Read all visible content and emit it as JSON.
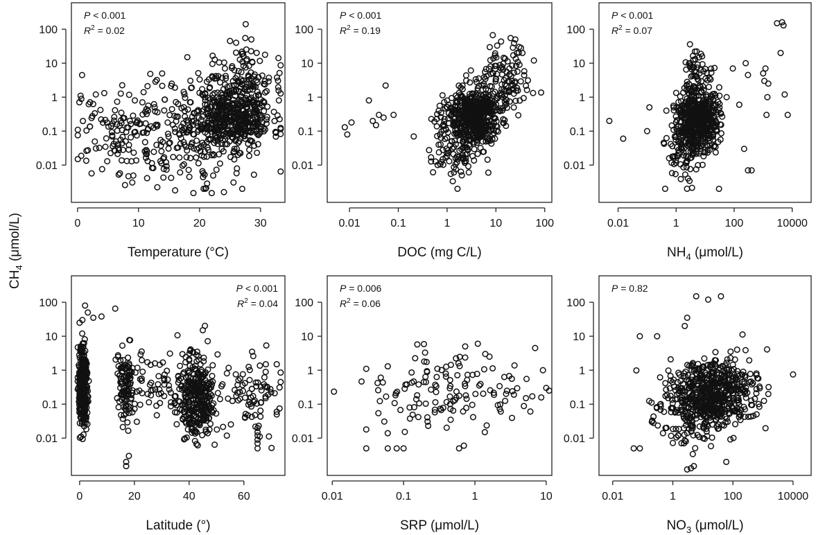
{
  "figure": {
    "ylabel": "CH",
    "ylabel_sub": "4",
    "ylabel_unit": " (μmol/L)"
  },
  "chart_data": [
    {
      "type": "scatter",
      "xlabel_main": "Temperature (°C)",
      "xlabel_sub": "",
      "xlabel_tail": "",
      "xscale": "linear",
      "xlim": [
        -1,
        34
      ],
      "xticks": [
        0,
        10,
        20,
        30
      ],
      "xtick_labels": [
        "0",
        "10",
        "20",
        "30"
      ],
      "yscale": "log",
      "ylim": [
        0.0008,
        600
      ],
      "yticks": [
        0.01,
        0.1,
        1,
        10,
        100
      ],
      "ytick_labels": [
        "0.01",
        "0.1",
        "1",
        "10",
        "100"
      ],
      "stats": [
        {
          "sym": "P",
          "text": " < 0.001",
          "sup": ""
        },
        {
          "sym": "R",
          "sup": "2",
          "text": " = 0.02"
        }
      ],
      "stats_align": "left",
      "gen": {
        "seed": 11,
        "clusters": [
          {
            "n": 420,
            "x": [
              25.5,
              3.2
            ],
            "y": [
              -0.6,
              0.45
            ]
          },
          {
            "n": 120,
            "x": [
              27,
              2.5
            ],
            "y": [
              0.6,
              0.5
            ]
          },
          {
            "n": 230,
            "x": [
              17,
              5.5
            ],
            "y": [
              -1.0,
              0.75
            ]
          },
          {
            "n": 90,
            "x": [
              7,
              4.5
            ],
            "y": [
              -1.1,
              0.7
            ]
          }
        ]
      },
      "points_extra": [
        [
          25,
          45
        ],
        [
          26,
          40
        ],
        [
          27.5,
          55
        ],
        [
          28.5,
          50
        ],
        [
          18,
          15
        ],
        [
          3,
          1.2
        ],
        [
          0.5,
          1.1
        ],
        [
          31,
          1.5
        ],
        [
          33,
          0.8
        ],
        [
          13,
          3.2
        ],
        [
          22,
          0.0015
        ],
        [
          24,
          0.0016
        ],
        [
          27,
          0.002
        ],
        [
          16,
          0.0018
        ],
        [
          19,
          0.0015
        ]
      ]
    },
    {
      "type": "scatter",
      "xlabel_main": "DOC (mg C/L)",
      "xlabel_sub": "",
      "xlabel_tail": "",
      "xscale": "log",
      "xlim": [
        0.0035,
        140
      ],
      "xticks": [
        0.01,
        0.1,
        1,
        10,
        100
      ],
      "xtick_labels": [
        "0.01",
        "0.1",
        "1",
        "10",
        "100"
      ],
      "yscale": "log",
      "ylim": [
        0.0008,
        600
      ],
      "yticks": [
        0.01,
        0.1,
        1,
        10,
        100
      ],
      "ytick_labels": [
        "0.01",
        "0.1",
        "1",
        "10",
        "100"
      ],
      "stats": [
        {
          "sym": "P",
          "text": " < 0.001",
          "sup": ""
        },
        {
          "sym": "R",
          "sup": "2",
          "text": " = 0.19"
        }
      ],
      "stats_align": "left",
      "gen": {
        "seed": 23,
        "clusters": [
          {
            "n": 560,
            "x": [
              0.5,
              0.28
            ],
            "y": [
              -0.6,
              0.45
            ]
          },
          {
            "n": 110,
            "x": [
              1.2,
              0.25
            ],
            "y": [
              0.5,
              0.5
            ]
          },
          {
            "n": 60,
            "x": [
              0.1,
              0.25
            ],
            "y": [
              -1.7,
              0.35
            ]
          }
        ]
      },
      "points_extra": [
        [
          0.008,
          0.13
        ],
        [
          0.009,
          0.08
        ],
        [
          0.011,
          0.18
        ],
        [
          0.025,
          0.8
        ],
        [
          0.03,
          0.2
        ],
        [
          0.035,
          0.15
        ],
        [
          0.04,
          0.3
        ],
        [
          0.05,
          0.25
        ],
        [
          0.055,
          2.2
        ],
        [
          0.08,
          0.3
        ],
        [
          20,
          55
        ],
        [
          25,
          50
        ],
        [
          30,
          30
        ],
        [
          35,
          20
        ],
        [
          60,
          12
        ],
        [
          7,
          0.006
        ],
        [
          2,
          0.005
        ]
      ]
    },
    {
      "type": "scatter",
      "xlabel_main": "NH",
      "xlabel_sub": "4",
      "xlabel_tail": " (μmol/L)",
      "xscale": "log",
      "xlim": [
        0.0022,
        45000
      ],
      "xticks": [
        0.01,
        1,
        100,
        10000
      ],
      "xtick_labels": [
        "0.01",
        "1",
        "100",
        "10000"
      ],
      "yscale": "log",
      "ylim": [
        0.0008,
        600
      ],
      "yticks": [
        0.01,
        0.1,
        1,
        10,
        100
      ],
      "ytick_labels": [
        "0.01",
        "0.1",
        "1",
        "10",
        "100"
      ],
      "stats": [
        {
          "sym": "P",
          "text": " < 0.001",
          "sup": ""
        },
        {
          "sym": "R",
          "sup": "2",
          "text": " = 0.07"
        }
      ],
      "stats_align": "left",
      "gen": {
        "seed": 37,
        "clusters": [
          {
            "n": 520,
            "x": [
              0.75,
              0.35
            ],
            "y": [
              -0.6,
              0.5
            ]
          },
          {
            "n": 80,
            "x": [
              0.3,
              0.35
            ],
            "y": [
              -1.6,
              0.45
            ]
          },
          {
            "n": 40,
            "x": [
              0.7,
              0.3
            ],
            "y": [
              0.8,
              0.3
            ]
          }
        ]
      },
      "points_extra": [
        [
          0.005,
          0.2
        ],
        [
          0.015,
          0.06
        ],
        [
          0.12,
          0.5
        ],
        [
          0.1,
          0.1
        ],
        [
          300,
          4.5
        ],
        [
          1000,
          5
        ],
        [
          1200,
          7
        ],
        [
          1100,
          3
        ],
        [
          1500,
          2.5
        ],
        [
          1400,
          1
        ],
        [
          1300,
          0.3
        ],
        [
          3000,
          150
        ],
        [
          4500,
          160
        ],
        [
          5000,
          130
        ],
        [
          4000,
          20
        ],
        [
          5500,
          1.2
        ],
        [
          7000,
          0.3
        ],
        [
          220,
          0.03
        ],
        [
          300,
          0.007
        ],
        [
          400,
          0.007
        ],
        [
          250,
          10
        ],
        [
          90,
          7
        ],
        [
          150,
          0.6
        ],
        [
          55,
          1
        ],
        [
          30,
          0.002
        ],
        [
          3,
          36
        ]
      ]
    },
    {
      "type": "scatter",
      "xlabel_main": "Latitude (°)",
      "xlabel_sub": "",
      "xlabel_tail": "",
      "xscale": "linear",
      "xlim": [
        -3,
        75
      ],
      "xticks": [
        0,
        20,
        40,
        60
      ],
      "xtick_labels": [
        "0",
        "20",
        "40",
        "60"
      ],
      "yscale": "log",
      "ylim": [
        0.0008,
        600
      ],
      "yticks": [
        0.01,
        0.1,
        1,
        10,
        100
      ],
      "ytick_labels": [
        "0.01",
        "0.1",
        "1",
        "10",
        "100"
      ],
      "stats": [
        {
          "sym": "P",
          "text": " < 0.001",
          "sup": ""
        },
        {
          "sym": "R",
          "sup": "2",
          "text": " = 0.04"
        }
      ],
      "stats_align": "right",
      "gen": {
        "seed": 51,
        "clusters": [
          {
            "n": 330,
            "x": [
              1.2,
              0.8
            ],
            "y": [
              -0.5,
              0.6
            ]
          },
          {
            "n": 110,
            "x": [
              17,
              1.5
            ],
            "y": [
              -0.5,
              0.55
            ]
          },
          {
            "n": 300,
            "x": [
              43,
              3.5
            ],
            "y": [
              -0.8,
              0.6
            ]
          },
          {
            "n": 90,
            "x": [
              30,
              9
            ],
            "y": [
              -0.4,
              0.55
            ]
          },
          {
            "n": 80,
            "x": [
              62,
              6
            ],
            "y": [
              -0.6,
              0.6
            ]
          }
        ]
      },
      "points_extra": [
        [
          2,
          80
        ],
        [
          3,
          50
        ],
        [
          5,
          35
        ],
        [
          8,
          38
        ],
        [
          13,
          65
        ],
        [
          1,
          30
        ],
        [
          0,
          25
        ],
        [
          17,
          0.0015
        ],
        [
          17,
          0.002
        ],
        [
          18,
          0.003
        ],
        [
          65,
          0.005
        ],
        [
          65,
          0.007
        ],
        [
          65,
          0.009
        ],
        [
          65,
          0.012
        ],
        [
          65,
          0.015
        ],
        [
          65,
          0.02
        ],
        [
          72,
          0.05
        ],
        [
          72,
          0.06
        ],
        [
          72,
          1.5
        ],
        [
          68,
          1.5
        ],
        [
          63,
          3.5
        ],
        [
          45,
          15
        ]
      ]
    },
    {
      "type": "scatter",
      "xlabel_main": "SRP (μmol/L)",
      "xlabel_sub": "",
      "xlabel_tail": "",
      "xscale": "log",
      "xlim": [
        0.0085,
        12
      ],
      "xticks": [
        0.01,
        0.1,
        1,
        10
      ],
      "xtick_labels": [
        "0.01",
        "0.1",
        "1",
        "10"
      ],
      "yscale": "log",
      "ylim": [
        0.0008,
        600
      ],
      "yticks": [
        0.01,
        0.1,
        1,
        10,
        100
      ],
      "ytick_labels": [
        "0.01",
        "0.1",
        "1",
        "10",
        "100"
      ],
      "stats": [
        {
          "sym": "P",
          "text": "  = 0.006",
          "sup": ""
        },
        {
          "sym": "R",
          "sup": "2",
          "text": " = 0.06"
        }
      ],
      "stats_align": "left",
      "gen": {
        "seed": 67,
        "clusters": [
          {
            "n": 130,
            "x": [
              -0.4,
              0.55
            ],
            "y": [
              -0.7,
              0.55
            ]
          }
        ]
      },
      "points_extra": [
        [
          0.03,
          0.005
        ],
        [
          0.03,
          0.018
        ],
        [
          0.03,
          1.1
        ],
        [
          0.06,
          0.005
        ],
        [
          0.06,
          0.014
        ],
        [
          0.06,
          1.3
        ],
        [
          0.08,
          0.005
        ],
        [
          0.1,
          0.005
        ],
        [
          1.1,
          6
        ],
        [
          1.4,
          3
        ],
        [
          1.6,
          2.5
        ],
        [
          7,
          4.5
        ],
        [
          9,
          1
        ],
        [
          10,
          0.3
        ],
        [
          11,
          0.25
        ],
        [
          0.7,
          0.006
        ],
        [
          0.6,
          0.005
        ]
      ]
    },
    {
      "type": "scatter",
      "xlabel_main": "NO",
      "xlabel_sub": "3",
      "xlabel_tail": " (μmol/L)",
      "xscale": "log",
      "xlim": [
        0.0035,
        40000
      ],
      "xticks": [
        0.01,
        1,
        100,
        10000
      ],
      "xtick_labels": [
        "0.01",
        "1",
        "100",
        "10000"
      ],
      "yscale": "log",
      "ylim": [
        0.0008,
        600
      ],
      "yticks": [
        0.01,
        0.1,
        1,
        10,
        100
      ],
      "ytick_labels": [
        "0.01",
        "0.1",
        "1",
        "10",
        "100"
      ],
      "stats": [
        {
          "sym": "P",
          "text": "  = 0.82",
          "sup": ""
        }
      ],
      "stats_align": "left",
      "gen": {
        "seed": 83,
        "clusters": [
          {
            "n": 560,
            "x": [
              1.3,
              0.75
            ],
            "y": [
              -0.65,
              0.5
            ]
          },
          {
            "n": 100,
            "x": [
              0.6,
              0.5
            ],
            "y": [
              -1.4,
              0.45
            ]
          }
        ]
      },
      "points_extra": [
        [
          0.05,
          0.005
        ],
        [
          0.08,
          0.005
        ],
        [
          10000,
          0.75
        ],
        [
          6,
          150
        ],
        [
          40,
          150
        ],
        [
          15,
          120
        ],
        [
          3,
          35
        ],
        [
          2.5,
          20
        ],
        [
          0.08,
          10
        ],
        [
          0.3,
          10
        ],
        [
          5,
          0.0015
        ],
        [
          3,
          0.0012
        ],
        [
          4,
          0.0013
        ],
        [
          0.2,
          0.03
        ],
        [
          60,
          0.002
        ],
        [
          1500,
          0.2
        ]
      ]
    }
  ]
}
